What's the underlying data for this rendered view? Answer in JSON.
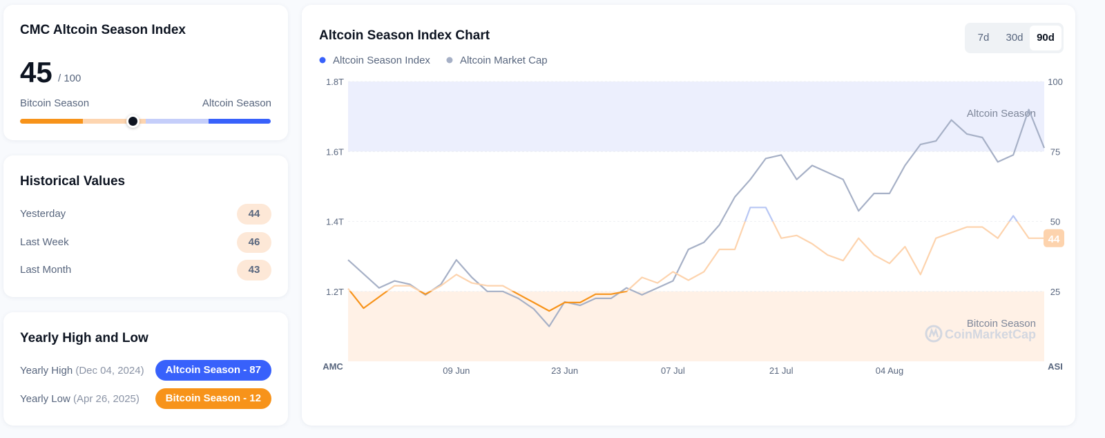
{
  "index_card": {
    "title": "CMC Altcoin Season Index",
    "value": 45,
    "max_label": "/ 100",
    "range": [
      0,
      100
    ],
    "left_label": "Bitcoin Season",
    "right_label": "Altcoin Season"
  },
  "historical": {
    "title": "Historical Values",
    "rows": [
      {
        "label": "Yesterday",
        "value": 44
      },
      {
        "label": "Last Week",
        "value": 46
      },
      {
        "label": "Last Month",
        "value": 43
      }
    ]
  },
  "yearly": {
    "title": "Yearly High and Low",
    "rows": [
      {
        "label": "Yearly High",
        "date": "(Dec 04, 2024)",
        "badge": "Altcoin Season - 87",
        "color": "#3861fb"
      },
      {
        "label": "Yearly Low",
        "date": "(Apr 26, 2025)",
        "badge": "Bitcoin Season - 12",
        "color": "#f7931a"
      }
    ]
  },
  "chart_data": {
    "type": "line",
    "title": "Altcoin Season Index Chart",
    "range_buttons": [
      "7d",
      "30d",
      "90d"
    ],
    "active_range": "90d",
    "ylabel": "AMC",
    "y2label": "ASI",
    "x": [
      0,
      2,
      4,
      6,
      8,
      10,
      12,
      14,
      16,
      18,
      20,
      22,
      24,
      26,
      28,
      30,
      32,
      34,
      36,
      38,
      40,
      42,
      44,
      46,
      48,
      50,
      52,
      54,
      56,
      58,
      60,
      62,
      64,
      66,
      68,
      70,
      72,
      74,
      76,
      78,
      80,
      82,
      84,
      86,
      88,
      90
    ],
    "xlim": [
      0,
      90
    ],
    "xticks": [
      {
        "value": 14,
        "label": "09 Jun"
      },
      {
        "value": 28,
        "label": "23 Jun"
      },
      {
        "value": 42,
        "label": "07 Jul"
      },
      {
        "value": 56,
        "label": "21 Jul"
      },
      {
        "value": 70,
        "label": "04 Aug"
      }
    ],
    "ylim": [
      1.0,
      1.8
    ],
    "yticks": [
      {
        "value": 1.2,
        "label": "1.2T"
      },
      {
        "value": 1.4,
        "label": "1.4T"
      },
      {
        "value": 1.6,
        "label": "1.6T"
      },
      {
        "value": 1.8,
        "label": "1.8T"
      }
    ],
    "y2lim": [
      0,
      100
    ],
    "y2ticks": [
      25,
      50,
      75,
      100
    ],
    "grid": true,
    "bands": [
      {
        "label": "Altcoin Season",
        "from": 75,
        "to": 100,
        "color": "#eceffd"
      },
      {
        "label": "Bitcoin Season",
        "from": 0,
        "to": 25,
        "color": "#fff1e6"
      }
    ],
    "watermark": "CoinMarketCap",
    "series": [
      {
        "name": "Altcoin Season Index",
        "color": "#3861fb",
        "axis": "y2",
        "zone_colors": [
          {
            "below": 25,
            "color": "#f7931a"
          },
          {
            "below": 50,
            "color": "#fdd3ad"
          },
          {
            "below": 100,
            "color": "#b7c6f4"
          }
        ],
        "values": [
          26,
          19,
          23,
          27,
          27,
          24,
          27,
          31,
          28,
          27,
          27,
          24,
          21,
          18,
          21,
          21,
          24,
          24,
          25,
          30,
          28,
          32,
          29,
          32,
          40,
          40,
          55,
          55,
          44,
          45,
          42,
          38,
          36,
          44,
          38,
          35,
          41,
          31,
          44,
          46,
          48,
          48,
          44,
          52,
          44,
          44
        ]
      },
      {
        "name": "Altcoin Market Cap",
        "color": "#a6b0c6",
        "values": [
          1.29,
          1.25,
          1.21,
          1.23,
          1.22,
          1.19,
          1.22,
          1.29,
          1.24,
          1.2,
          1.2,
          1.18,
          1.15,
          1.1,
          1.17,
          1.16,
          1.18,
          1.18,
          1.21,
          1.19,
          1.21,
          1.23,
          1.32,
          1.34,
          1.39,
          1.47,
          1.52,
          1.58,
          1.59,
          1.52,
          1.56,
          1.54,
          1.52,
          1.43,
          1.48,
          1.48,
          1.56,
          1.62,
          1.63,
          1.69,
          1.65,
          1.64,
          1.57,
          1.59,
          1.72,
          1.61
        ]
      }
    ]
  }
}
